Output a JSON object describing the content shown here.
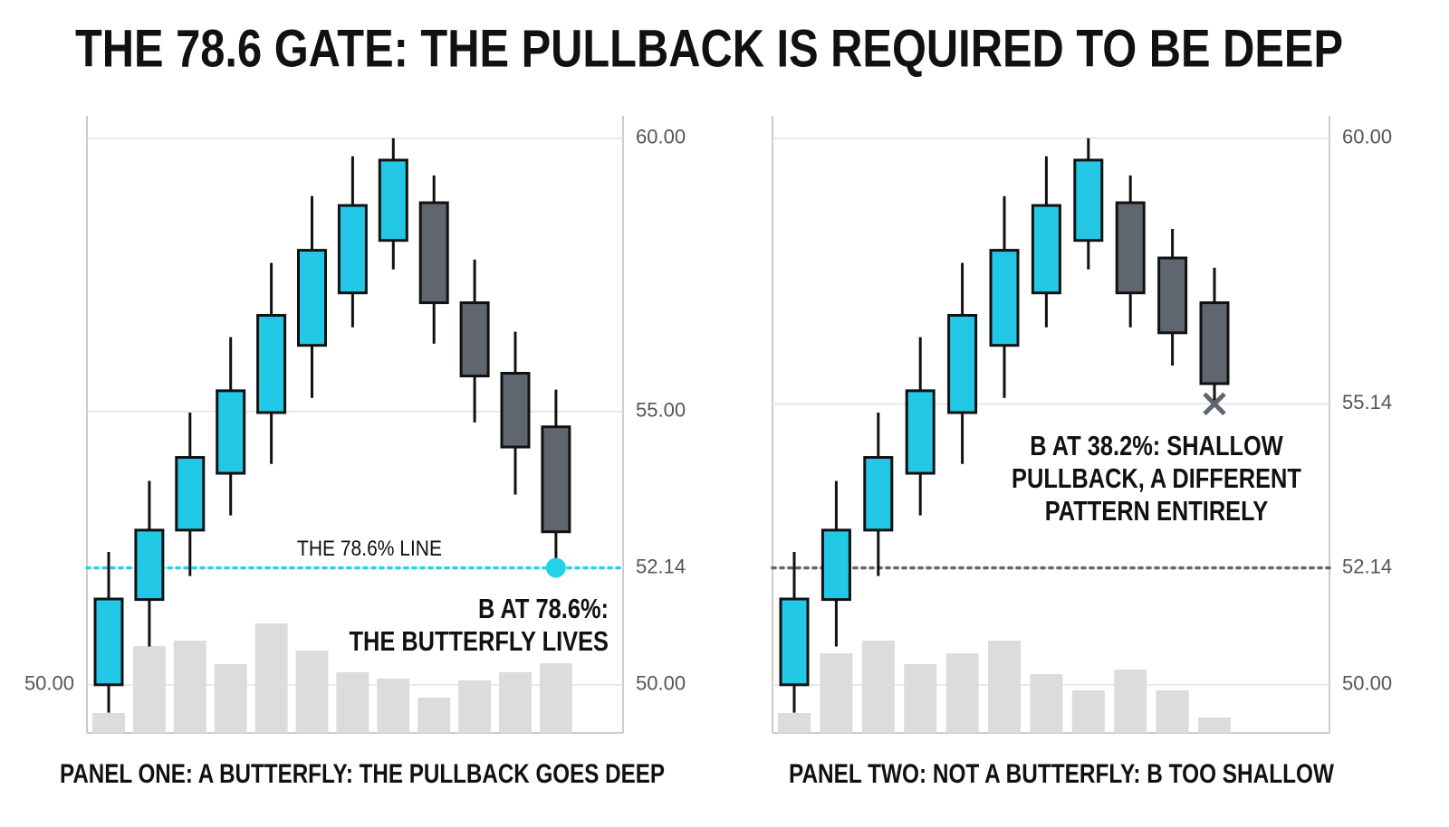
{
  "title": "THE 78.6 GATE: THE PULLBACK IS REQUIRED TO BE DEEP",
  "chart_data": [
    {
      "type": "candlestick",
      "title": "PANEL ONE: A BUTTERFLY: THE PULLBACK GOES DEEP",
      "open": [
        50.0,
        51.56,
        52.83,
        53.87,
        54.98,
        56.21,
        57.17,
        58.13,
        58.82,
        56.99,
        55.7,
        54.72
      ],
      "close": [
        51.57,
        52.83,
        54.16,
        55.38,
        56.76,
        57.95,
        58.77,
        59.6,
        56.99,
        55.65,
        54.35,
        52.8
      ],
      "high": [
        52.43,
        53.73,
        54.98,
        56.36,
        57.72,
        58.94,
        59.67,
        60.0,
        59.32,
        57.78,
        56.46,
        55.4
      ],
      "low": [
        49.49,
        50.7,
        51.99,
        53.1,
        54.04,
        55.25,
        56.54,
        57.6,
        56.24,
        54.8,
        53.48,
        52.14
      ],
      "volume": [
        22,
        96,
        102,
        76,
        121,
        91,
        67,
        60,
        39,
        58,
        67,
        77
      ],
      "up_color": "#22c8e6",
      "down_color": "#5f6670",
      "volume_color": "#dcdcdc",
      "ylim": [
        49.12,
        60.41
      ],
      "yticks": [
        {
          "value": 60,
          "label": "60.00"
        },
        {
          "value": 55,
          "label": "55.00"
        },
        52.14,
        {
          "value": 50,
          "label": "50.00"
        }
      ],
      "left_yticks": [
        {
          "value": 50,
          "label": "50.00"
        }
      ],
      "level": {
        "value": 52.14,
        "label": "THE 78.6% LINE",
        "color": "#22d3e6"
      },
      "marker": "dot",
      "annotation": [
        "B AT 78.6%:",
        "THE BUTTERFLY LIVES"
      ]
    },
    {
      "type": "candlestick",
      "title": "PANEL TWO: NOT A BUTTERFLY: B TOO SHALLOW",
      "open": [
        50.0,
        51.56,
        52.83,
        53.87,
        54.98,
        56.21,
        57.17,
        58.13,
        58.82,
        57.81,
        56.99
      ],
      "close": [
        51.57,
        52.83,
        54.16,
        55.38,
        56.76,
        57.95,
        58.77,
        59.6,
        57.17,
        56.44,
        55.51
      ],
      "high": [
        52.43,
        53.73,
        54.98,
        56.36,
        57.72,
        58.94,
        59.67,
        60.0,
        59.32,
        58.34,
        57.63
      ],
      "low": [
        49.49,
        50.7,
        51.99,
        53.1,
        54.04,
        55.25,
        56.54,
        57.6,
        56.54,
        55.84,
        55.14
      ],
      "volume": [
        22,
        88,
        102,
        76,
        88,
        102,
        65,
        47,
        70,
        47,
        17
      ],
      "up_color": "#22c8e6",
      "down_color": "#5f6670",
      "volume_color": "#dcdcdc",
      "ylim": [
        49.12,
        60.41
      ],
      "yticks": [
        {
          "value": 60,
          "label": "60.00"
        },
        55.14,
        52.14,
        {
          "value": 50,
          "label": "50.00"
        }
      ],
      "level": {
        "value": 52.14,
        "color": "#666666"
      },
      "marker": "cross",
      "annotation": [
        "B AT 38.2%: SHALLOW",
        "PULLBACK, A DIFFERENT",
        "PATTERN ENTIRELY"
      ]
    }
  ]
}
